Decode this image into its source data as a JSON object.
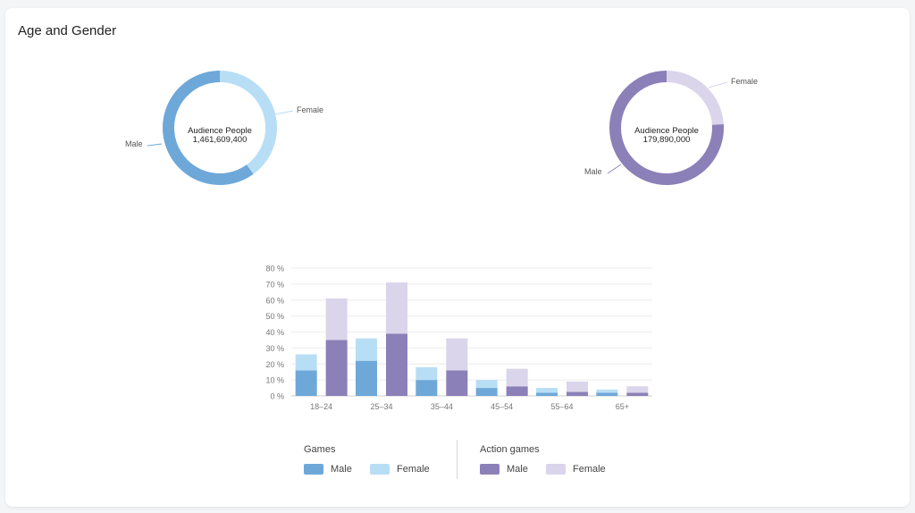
{
  "card": {
    "title": "Age and Gender"
  },
  "donuts": [
    {
      "center_title": "Audience People",
      "center_value": "1,461,609,400",
      "male_label": "Male",
      "female_label": "Female",
      "male_share": 0.6,
      "female_share": 0.4,
      "male_color": "#6ea8d9",
      "female_color": "#b8def6"
    },
    {
      "center_title": "Audience People",
      "center_value": "179,890,000",
      "male_label": "Male",
      "female_label": "Female",
      "male_share": 0.76,
      "female_share": 0.24,
      "male_color": "#8c80b8",
      "female_color": "#dad5ea"
    }
  ],
  "chart_data": {
    "type": "bar",
    "categories": [
      "18–24",
      "25–34",
      "35–44",
      "45–54",
      "55–64",
      "65+"
    ],
    "ylim": [
      0,
      80
    ],
    "yticks": [
      "0 %",
      "10 %",
      "20 %",
      "30 %",
      "40 %",
      "50 %",
      "60 %",
      "70 %",
      "80 %"
    ],
    "grid": true,
    "groups": [
      {
        "name": "Games",
        "series": [
          {
            "name": "Male",
            "color": "#6ea8d9",
            "values": [
              16,
              22,
              10,
              5,
              2,
              2
            ]
          },
          {
            "name": "Female",
            "color": "#b8def6",
            "values": [
              10,
              14,
              8,
              5,
              3,
              2
            ]
          }
        ]
      },
      {
        "name": "Action games",
        "series": [
          {
            "name": "Male",
            "color": "#8c80b8",
            "values": [
              35,
              39,
              16,
              6,
              2.5,
              2
            ]
          },
          {
            "name": "Female",
            "color": "#dad5ea",
            "values": [
              26,
              32,
              20,
              11,
              6.5,
              4
            ]
          }
        ]
      }
    ]
  },
  "legend": {
    "groups": [
      {
        "title": "Games",
        "items": [
          {
            "label": "Male",
            "color": "#6ea8d9"
          },
          {
            "label": "Female",
            "color": "#b8def6"
          }
        ]
      },
      {
        "title": "Action games",
        "items": [
          {
            "label": "Male",
            "color": "#8c80b8"
          },
          {
            "label": "Female",
            "color": "#dad5ea"
          }
        ]
      }
    ]
  }
}
